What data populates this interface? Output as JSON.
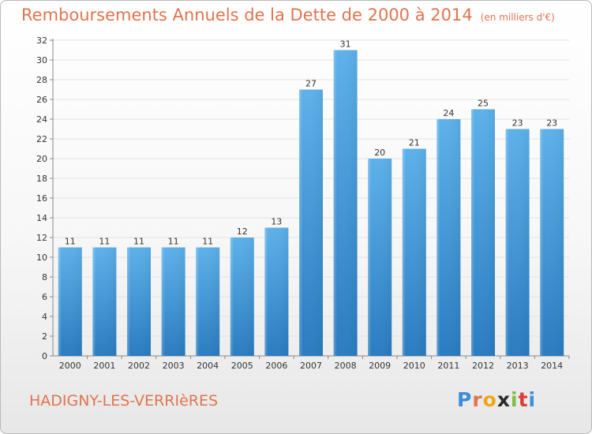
{
  "title": "Remboursements Annuels de la Dette de 2000 à 2014",
  "unit": "(en milliers d'€)",
  "commune": "HADIGNY-LES-VERRIèRES",
  "logo": {
    "letters": [
      "P",
      "r",
      "o",
      "x",
      "i",
      "t",
      "i"
    ],
    "colors": [
      "#3a8dd8",
      "#e0744f",
      "#f2a516",
      "#2a2a2a",
      "#7cbf3a",
      "#e03a3a",
      "#3a8dd8"
    ]
  },
  "colors": {
    "bar_light": "#5aaee8",
    "bar_dark": "#2d7fc4",
    "title": "#e0744f",
    "grid": "#e5e5e5"
  },
  "chart_data": {
    "type": "bar",
    "categories": [
      "2000",
      "2001",
      "2002",
      "2003",
      "2004",
      "2005",
      "2006",
      "2007",
      "2008",
      "2009",
      "2010",
      "2011",
      "2012",
      "2013",
      "2014"
    ],
    "values": [
      11,
      11,
      11,
      11,
      11,
      12,
      13,
      27,
      31,
      20,
      21,
      24,
      25,
      23,
      23
    ],
    "ylim": [
      0,
      32
    ],
    "yticks": [
      0,
      2,
      4,
      6,
      8,
      10,
      12,
      14,
      16,
      18,
      20,
      22,
      24,
      26,
      28,
      30,
      32
    ],
    "grid": true
  }
}
